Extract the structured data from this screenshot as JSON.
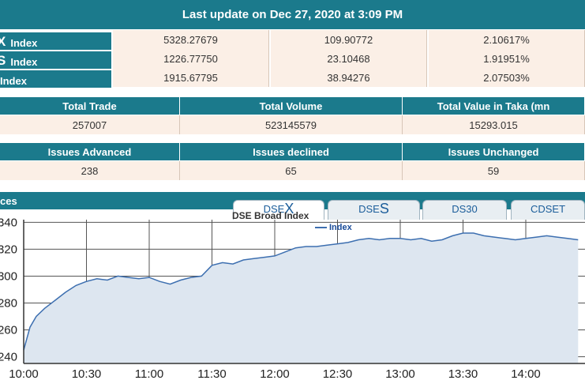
{
  "header": {
    "title": "Last update on Dec 27, 2020 at 3:09 PM"
  },
  "indices": [
    {
      "big": "X",
      "small": "Index",
      "value": "5328.27679",
      "change": "109.90772",
      "percent": "2.10617%"
    },
    {
      "big": "S",
      "small": "Index",
      "value": "1226.77750",
      "change": "23.10468",
      "percent": "1.91951%"
    },
    {
      "big": "",
      "small": "Index",
      "value": "1915.67795",
      "change": "38.94276",
      "percent": "2.07503%"
    }
  ],
  "trade": {
    "headers": [
      "Total Trade",
      "Total Volume",
      "Total Value in Taka (mn"
    ],
    "values": [
      "257007",
      "523145579",
      "15293.015"
    ]
  },
  "issues": {
    "headers": [
      "Issues Advanced",
      "Issues declined",
      "Issues Unchanged"
    ],
    "values": [
      "238",
      "65",
      "59"
    ]
  },
  "section": {
    "label": "ces"
  },
  "tabs": [
    {
      "prefix": "DSE",
      "big": "X",
      "active": true
    },
    {
      "prefix": "DSE",
      "big": "S",
      "active": false
    },
    {
      "prefix": "DS30",
      "big": "",
      "active": false
    },
    {
      "prefix": "CDSET",
      "big": "",
      "active": false
    }
  ],
  "chart_data": {
    "type": "area",
    "title": "DSE Broad Index",
    "legend": [
      "Index"
    ],
    "legend_position": "top-center",
    "grid": true,
    "color": "#3d6fb0",
    "fill": "#dde6f0",
    "x_labels": [
      "10:00",
      "10:30",
      "11:00",
      "11:30",
      "12:00",
      "12:30",
      "13:00",
      "13:30",
      "14:00"
    ],
    "y_ticks": [
      "240",
      "260",
      "280",
      "300",
      "320",
      "340"
    ],
    "y_range": [
      5235,
      5342
    ],
    "series": [
      {
        "name": "Index",
        "points": [
          [
            "10:00",
            5245
          ],
          [
            "10:03",
            5262
          ],
          [
            "10:06",
            5270
          ],
          [
            "10:10",
            5276
          ],
          [
            "10:15",
            5282
          ],
          [
            "10:20",
            5288
          ],
          [
            "10:25",
            5293
          ],
          [
            "10:30",
            5296
          ],
          [
            "10:35",
            5298
          ],
          [
            "10:40",
            5297
          ],
          [
            "10:45",
            5300
          ],
          [
            "10:50",
            5299
          ],
          [
            "10:55",
            5298
          ],
          [
            "11:00",
            5299
          ],
          [
            "11:05",
            5296
          ],
          [
            "11:10",
            5294
          ],
          [
            "11:15",
            5297
          ],
          [
            "11:20",
            5299
          ],
          [
            "11:25",
            5300
          ],
          [
            "11:30",
            5308
          ],
          [
            "11:35",
            5310
          ],
          [
            "11:40",
            5309
          ],
          [
            "11:45",
            5312
          ],
          [
            "11:50",
            5313
          ],
          [
            "11:55",
            5314
          ],
          [
            "12:00",
            5315
          ],
          [
            "12:05",
            5318
          ],
          [
            "12:10",
            5321
          ],
          [
            "12:15",
            5322
          ],
          [
            "12:20",
            5322
          ],
          [
            "12:25",
            5323
          ],
          [
            "12:30",
            5324
          ],
          [
            "12:35",
            5325
          ],
          [
            "12:40",
            5327
          ],
          [
            "12:45",
            5328
          ],
          [
            "12:50",
            5327
          ],
          [
            "12:55",
            5328
          ],
          [
            "13:00",
            5328
          ],
          [
            "13:05",
            5327
          ],
          [
            "13:10",
            5328
          ],
          [
            "13:15",
            5326
          ],
          [
            "13:20",
            5327
          ],
          [
            "13:25",
            5330
          ],
          [
            "13:30",
            5332
          ],
          [
            "13:35",
            5332
          ],
          [
            "13:40",
            5330
          ],
          [
            "13:45",
            5329
          ],
          [
            "13:50",
            5328
          ],
          [
            "13:55",
            5327
          ],
          [
            "14:00",
            5328
          ],
          [
            "14:05",
            5329
          ],
          [
            "14:10",
            5330
          ],
          [
            "14:15",
            5329
          ],
          [
            "14:20",
            5328
          ],
          [
            "14:25",
            5327
          ]
        ]
      }
    ]
  }
}
